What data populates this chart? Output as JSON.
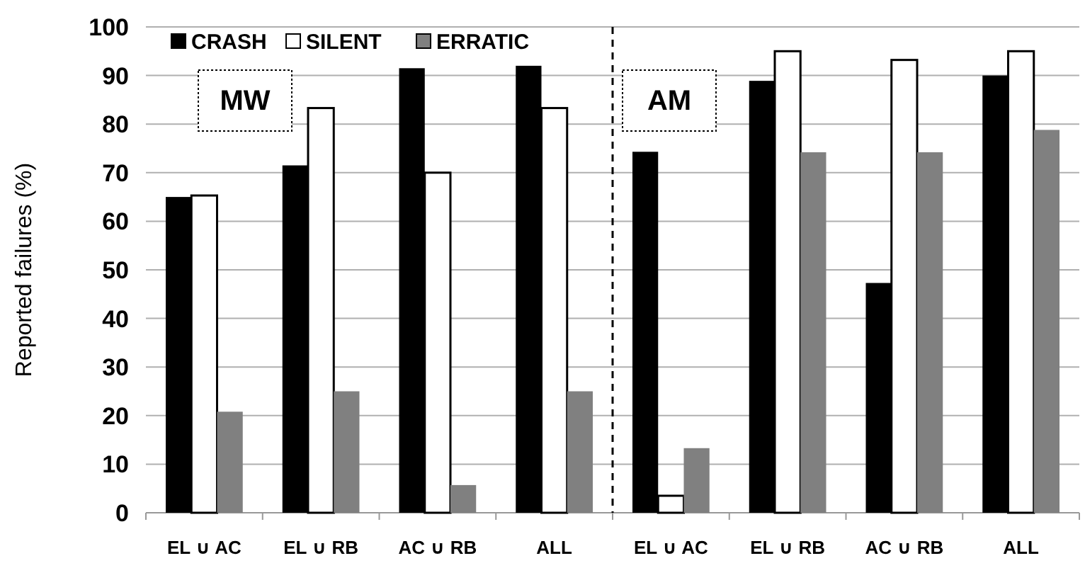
{
  "chart_data": [
    {
      "type": "bar",
      "ylabel": "Reported failures (%)",
      "categories": [
        "EL ∪ AC",
        "EL ∪ RB",
        "AC ∪ RB",
        "ALL"
      ],
      "series": [
        {
          "name": "CRASH",
          "color": "#000000",
          "values": [
            65,
            71.5,
            91.5,
            92
          ]
        },
        {
          "name": "SILENT",
          "color": "#ffffff",
          "values": [
            65.3,
            83.3,
            70,
            83.3
          ]
        },
        {
          "name": "ERRATIC",
          "color": "#808080",
          "values": [
            20.8,
            25,
            5.7,
            25
          ]
        }
      ],
      "ylim": [
        0,
        100
      ],
      "yticks": [
        0,
        10,
        20,
        30,
        40,
        50,
        60,
        70,
        80,
        90,
        100
      ],
      "grid": "y",
      "legend": "top left",
      "annotations": [
        "MW"
      ]
    },
    {
      "type": "bar",
      "categories": [
        "EL ∪ AC",
        "EL ∪ RB",
        "AC ∪ RB",
        "ALL"
      ],
      "series": [
        {
          "color": "#000000",
          "values": [
            74.3,
            88.9,
            47.3,
            90
          ]
        },
        {
          "color": "#ffffff",
          "values": [
            3.5,
            95,
            93.2,
            95
          ]
        },
        {
          "color": "#808080",
          "values": [
            13.3,
            74.2,
            74.2,
            78.8
          ]
        }
      ],
      "ylim": [
        0,
        100
      ],
      "yticks": [
        0,
        10,
        20,
        30,
        40,
        50,
        60,
        70,
        80,
        90,
        100
      ],
      "grid": "y",
      "tick_labels": "x",
      "annotations": [
        "AM"
      ]
    }
  ]
}
